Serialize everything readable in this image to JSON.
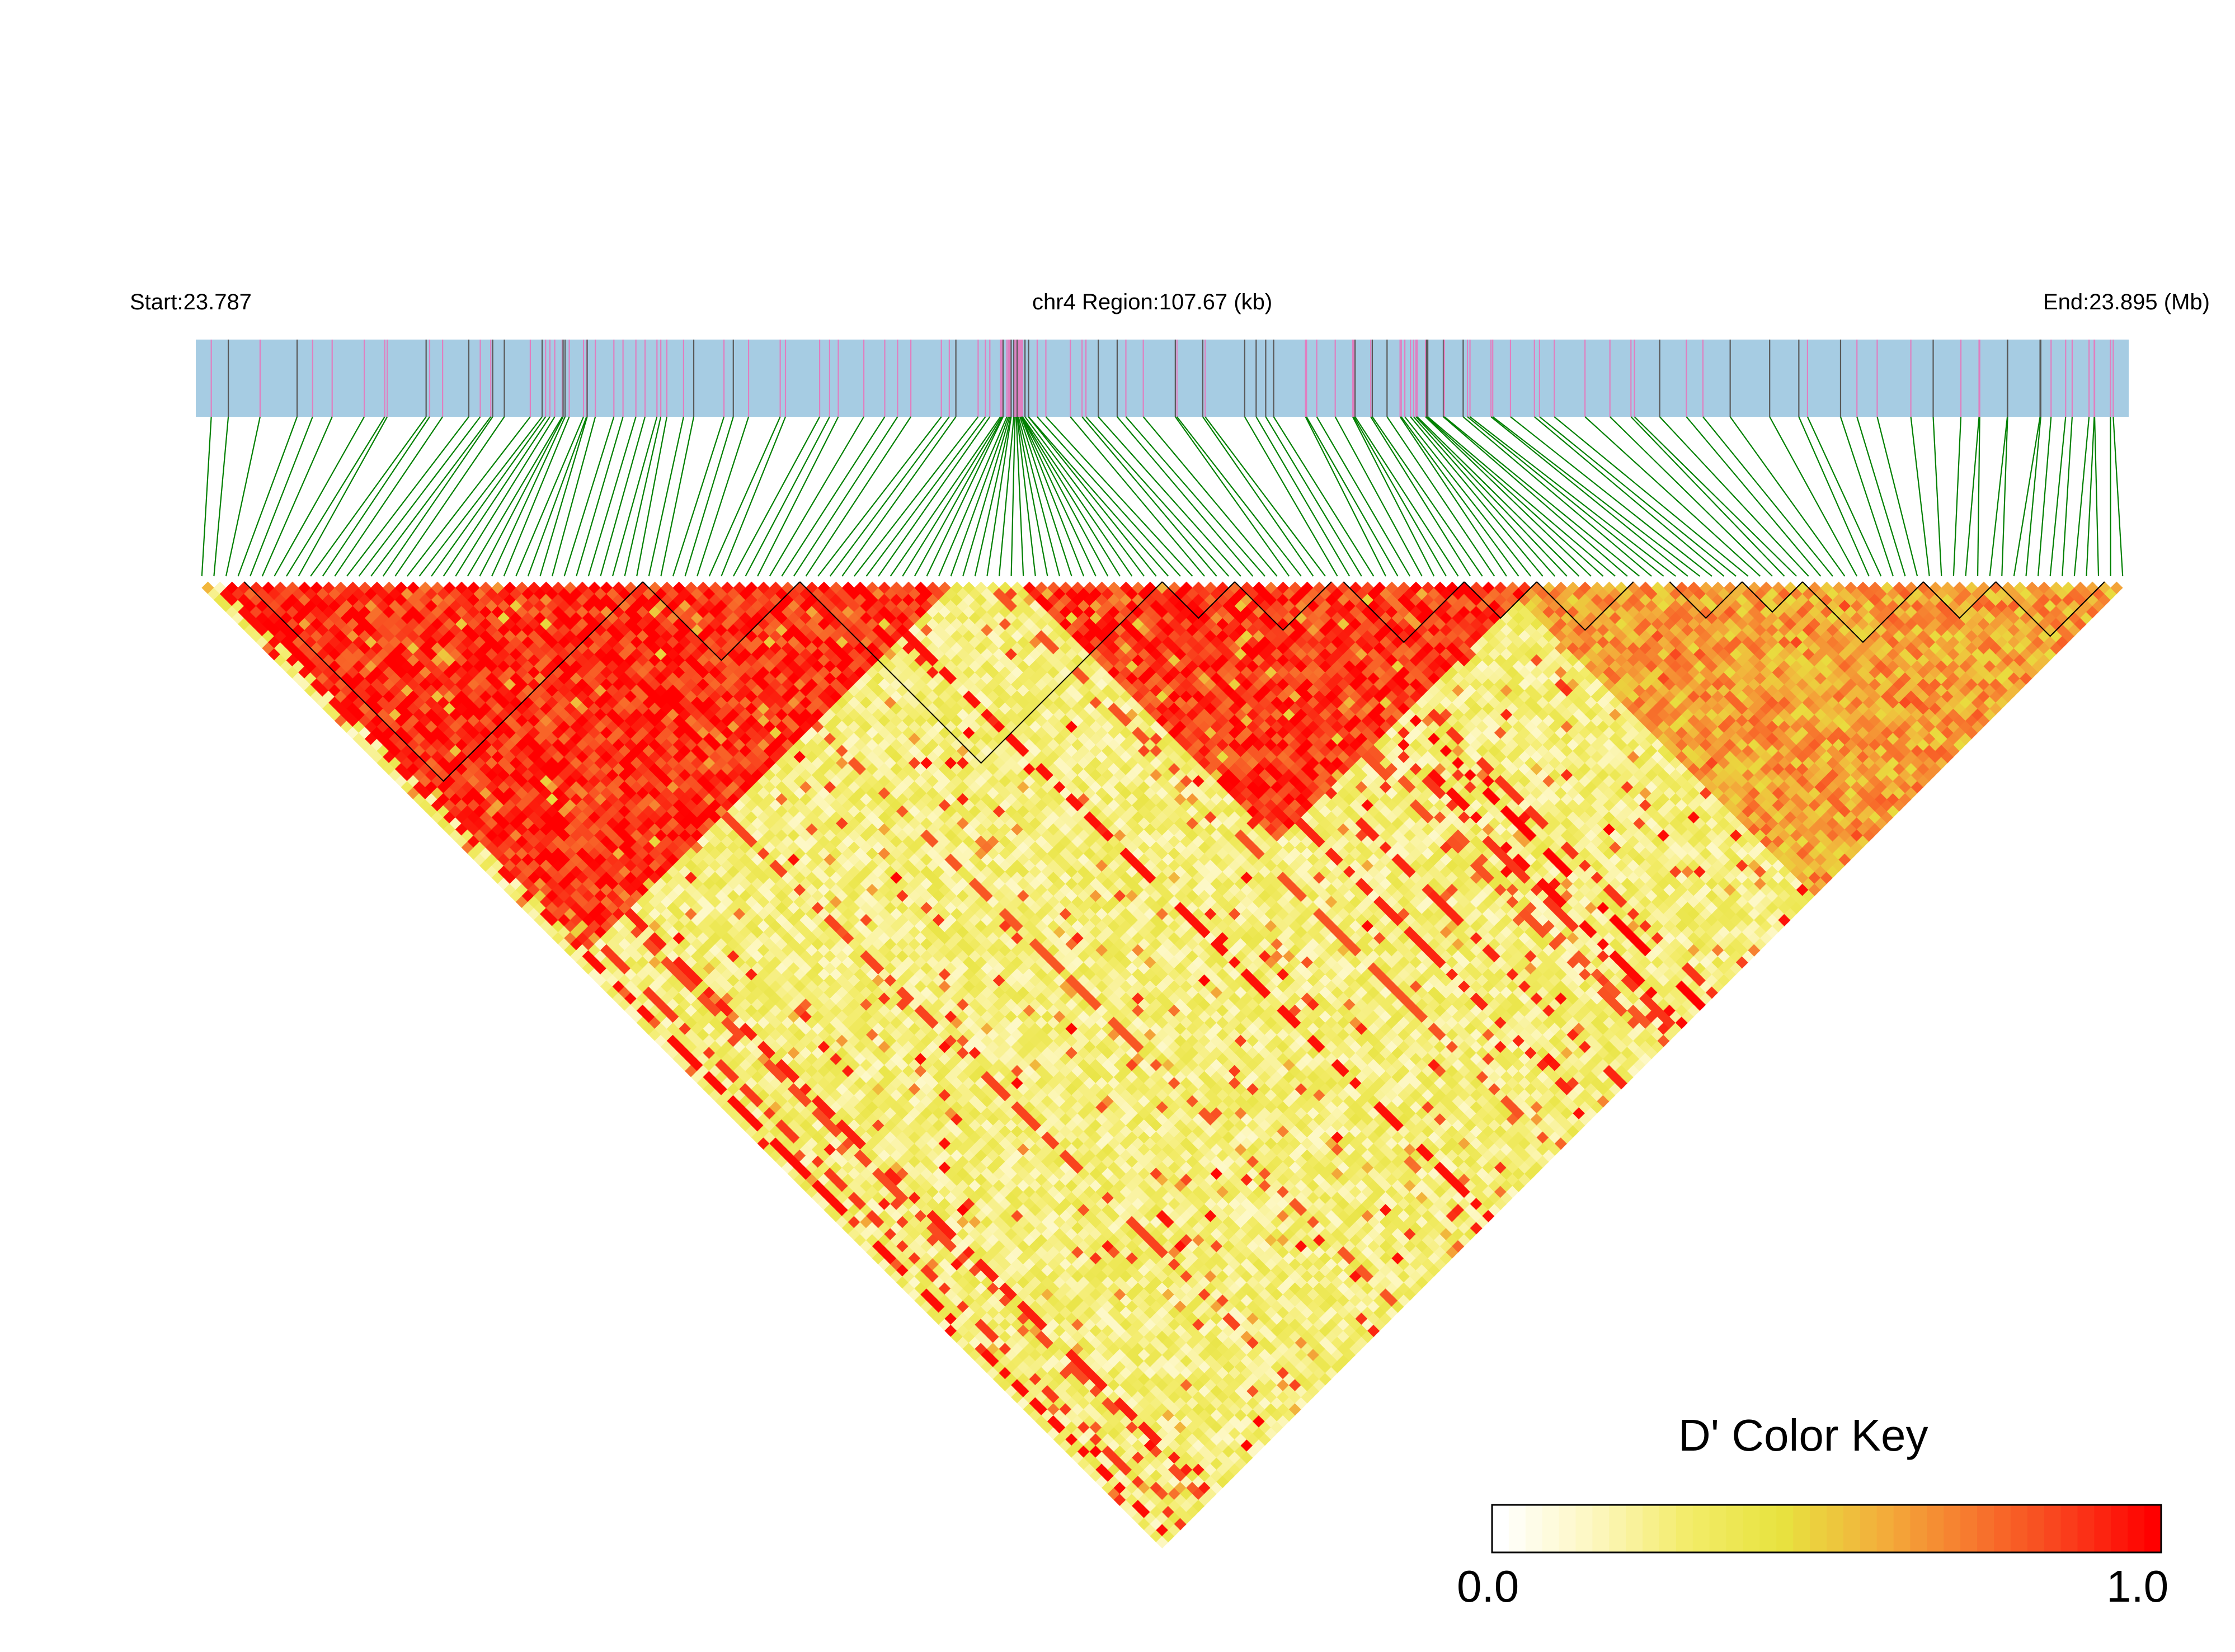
{
  "chart_data": {
    "type": "heatmap",
    "subtype": "linkage-disequilibrium-triangle",
    "header": {
      "start_label": "Start:23.787",
      "region_label": "chr4 Region:107.67 (kb)",
      "end_label": "End:23.895 (Mb)"
    },
    "region": {
      "chromosome": "chr4",
      "start_mb": 23.787,
      "end_mb": 23.895,
      "length_kb": 107.67
    },
    "snp_count": 160,
    "snp_track": {
      "band_color": "#a6cce3",
      "marker_colors": [
        "#e07fc0",
        "#595959"
      ],
      "connector_color": "#008000"
    },
    "blocks": [
      {
        "start": 4,
        "end": 37
      },
      {
        "start": 37,
        "end": 50
      },
      {
        "start": 50,
        "end": 80
      },
      {
        "start": 80,
        "end": 86
      },
      {
        "start": 86,
        "end": 94
      },
      {
        "start": 95,
        "end": 105
      },
      {
        "start": 105,
        "end": 111
      },
      {
        "start": 111,
        "end": 119
      },
      {
        "start": 122,
        "end": 128
      },
      {
        "start": 128,
        "end": 133
      },
      {
        "start": 133,
        "end": 143
      },
      {
        "start": 143,
        "end": 149
      },
      {
        "start": 149,
        "end": 158
      }
    ],
    "high_ld_regions": [
      {
        "start": 2,
        "end": 62,
        "level": 0.92
      },
      {
        "start": 68,
        "end": 110,
        "level": 0.9
      },
      {
        "start": 108,
        "end": 160,
        "level": 0.62
      }
    ],
    "color_key": {
      "title": "D' Color Key",
      "min_label": "0.0",
      "max_label": "1.0",
      "range": [
        0,
        1
      ],
      "colors": [
        "#ffffff",
        "#fdf7c0",
        "#f3ec6a",
        "#e7e33f",
        "#f2b33c",
        "#f77c2f",
        "#f9431e",
        "#ff0000"
      ]
    }
  }
}
